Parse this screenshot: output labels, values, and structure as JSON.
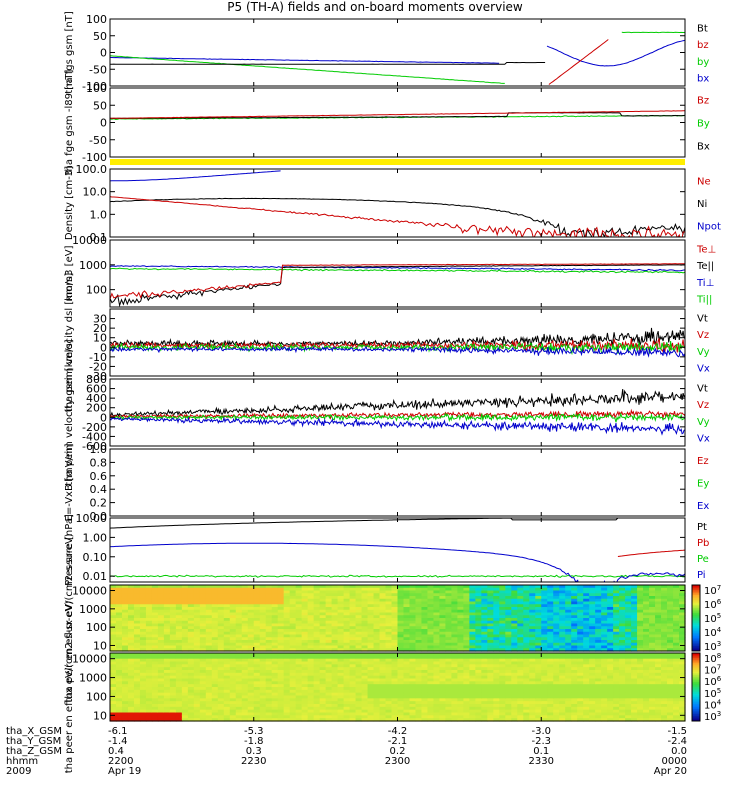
{
  "title": "P5 (TH-A) fields and on-board moments overview",
  "chart_data": [
    {
      "type": "line",
      "ylabel": "tha fgs gsm [nT]",
      "ylim": [
        -100,
        100
      ],
      "ytick_labels": [
        "100",
        "50",
        "0",
        "-50",
        "-100"
      ],
      "series": [
        {
          "name": "Bt",
          "color": "#000000"
        },
        {
          "name": "bz",
          "color": "#cc0000"
        },
        {
          "name": "by",
          "color": "#00cc00"
        },
        {
          "name": "bx",
          "color": "#0000cc"
        }
      ]
    },
    {
      "type": "line",
      "ylabel": "tha fge gsm -l89 [nT]",
      "ylim": [
        -100,
        100
      ],
      "ytick_labels": [
        "100",
        "50",
        "0",
        "-50",
        "-100"
      ],
      "series": [
        {
          "name": "Bz",
          "color": "#cc0000"
        },
        {
          "name": "By",
          "color": "#00cc00"
        },
        {
          "name": "Bx",
          "color": "#000000"
        }
      ]
    },
    {
      "type": "line",
      "ylabel": "Density [cm-3]",
      "yscale": "log",
      "ylim": [
        0.1,
        100
      ],
      "ytick_labels": [
        "100.0",
        "10.0",
        "1.0",
        "0.1"
      ],
      "series": [
        {
          "name": "Ne",
          "color": "#cc0000"
        },
        {
          "name": "Ni",
          "color": "#000000"
        },
        {
          "name": "Npot",
          "color": "#0000cc"
        }
      ]
    },
    {
      "type": "line",
      "ylabel": "mom3 [eV]",
      "yscale": "log",
      "ylim": [
        20,
        10000
      ],
      "ytick_labels": [
        "10000",
        "1000",
        "100"
      ],
      "series": [
        {
          "name": "Te⊥",
          "color": "#cc0000"
        },
        {
          "name": "Te||",
          "color": "#000000"
        },
        {
          "name": "Ti⊥",
          "color": "#0000cc"
        },
        {
          "name": "Ti||",
          "color": "#00cc00"
        }
      ]
    },
    {
      "type": "line",
      "ylabel": "tha peim velocity dsl [km/s]",
      "ylim": [
        -30,
        40
      ],
      "ytick_labels": [
        "30",
        "20",
        "10",
        "0",
        "-10",
        "-20",
        "-30"
      ],
      "series": [
        {
          "name": "Vt",
          "color": "#000000"
        },
        {
          "name": "Vz",
          "color": "#cc0000"
        },
        {
          "name": "Vy",
          "color": "#00cc00"
        },
        {
          "name": "Vx",
          "color": "#0000cc"
        }
      ]
    },
    {
      "type": "line",
      "ylabel": "tha peim velocity gsm [km/s]",
      "ylim": [
        -600,
        800
      ],
      "ytick_labels": [
        "800",
        "600",
        "400",
        "200",
        "0",
        "-200",
        "-400",
        "-600"
      ],
      "series": [
        {
          "name": "Vt",
          "color": "#000000"
        },
        {
          "name": "Vz",
          "color": "#cc0000"
        },
        {
          "name": "Vy",
          "color": "#00cc00"
        },
        {
          "name": "Vx",
          "color": "#0000cc"
        }
      ]
    },
    {
      "type": "line",
      "ylabel": "E=-VxB [mV/m]",
      "ylim": [
        0,
        1
      ],
      "ytick_labels": [
        "1.0",
        "0.8",
        "0.6",
        "0.4",
        "0.2",
        "0.0"
      ],
      "series": [
        {
          "name": "Ez",
          "color": "#cc0000"
        },
        {
          "name": "Ey",
          "color": "#00cc00"
        },
        {
          "name": "Ex",
          "color": "#0000cc"
        }
      ]
    },
    {
      "type": "line",
      "ylabel": "Pressure [nPa]",
      "yscale": "log",
      "ylim": [
        0.005,
        10
      ],
      "ytick_labels": [
        "10.00",
        "1.00",
        "0.10",
        "0.01"
      ],
      "series": [
        {
          "name": "Pt",
          "color": "#000000"
        },
        {
          "name": "Pb",
          "color": "#cc0000"
        },
        {
          "name": "Pe",
          "color": "#00cc00"
        },
        {
          "name": "Pi",
          "color": "#0000cc"
        }
      ]
    },
    {
      "type": "heatmap",
      "ylabel": "tha peir en eflux eV/(cm2-s-sr-eV)",
      "yscale": "log",
      "ylim": [
        5,
        20000
      ],
      "ytick_labels": [
        "10000",
        "1000",
        "100",
        "10"
      ],
      "colorbar_labels": [
        "10^7",
        "10^6",
        "10^5",
        "10^4",
        "10^3"
      ]
    },
    {
      "type": "heatmap",
      "ylabel": "tha peer en eflux eV/(cm2-s-sr-eV)",
      "yscale": "log",
      "ylim": [
        5,
        20000
      ],
      "ytick_labels": [
        "10000",
        "1000",
        "100",
        "10"
      ],
      "colorbar_labels": [
        "10^8",
        "10^7",
        "10^6",
        "10^5",
        "10^4",
        "10^3"
      ]
    }
  ],
  "xaxis": {
    "row_labels": [
      "tha_X_GSM",
      "tha_Y_GSM",
      "tha_Z_GSM",
      "hhmm",
      "2009"
    ],
    "columns": [
      {
        "x": "-6.1",
        "y": "-1.4",
        "z": "0.4",
        "t": "2200",
        "d": "Apr 19"
      },
      {
        "x": "-5.3",
        "y": "-1.8",
        "z": "0.3",
        "t": "2230",
        "d": ""
      },
      {
        "x": "-4.2",
        "y": "-2.1",
        "z": "0.2",
        "t": "2300",
        "d": ""
      },
      {
        "x": "-3.0",
        "y": "-2.3",
        "z": "0.1",
        "t": "2330",
        "d": ""
      },
      {
        "x": "-1.5",
        "y": "-2.4",
        "z": "0.0",
        "t": "0000",
        "d": "Apr 20"
      }
    ]
  }
}
